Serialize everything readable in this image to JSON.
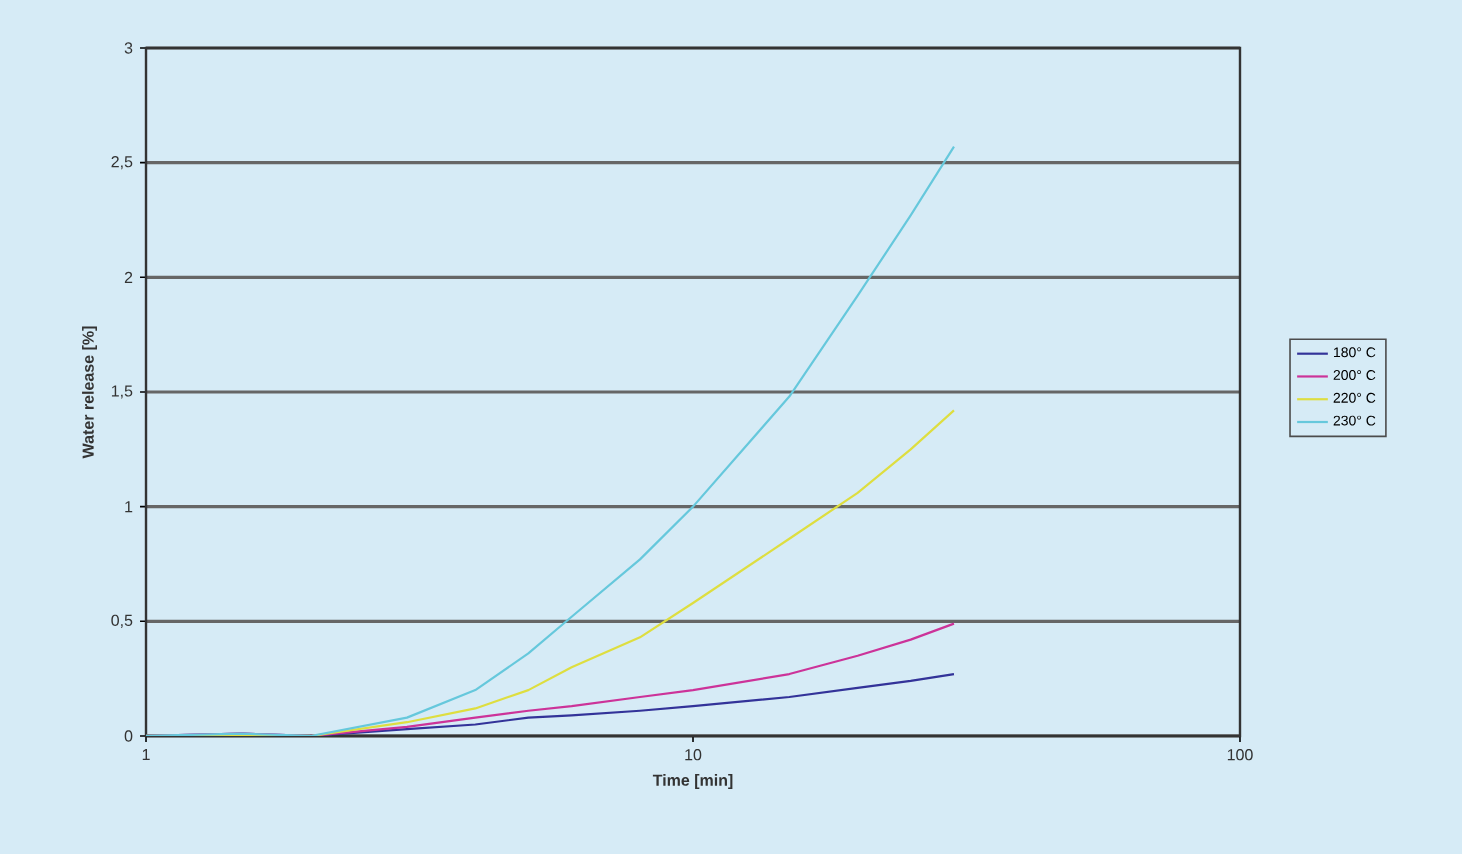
{
  "chart_data": {
    "type": "line",
    "xlabel": "Time [min]",
    "ylabel": "Water release [%]",
    "log": "x",
    "xlim": [
      1,
      100
    ],
    "xticks": [
      1,
      10,
      100
    ],
    "ylim": [
      0,
      3
    ],
    "yticks": [
      0,
      {
        "value": 0.5,
        "label": "0,5"
      },
      1,
      {
        "value": 1.5,
        "label": "1,5"
      },
      2,
      {
        "value": 2.5,
        "label": "2,5"
      },
      3
    ],
    "grid": "y",
    "legend": "right",
    "marker": "none",
    "line_style": "solid",
    "x": [
      1,
      1.5,
      2,
      3,
      4,
      5,
      6,
      8,
      10,
      15,
      20,
      25,
      30
    ],
    "series": [
      {
        "name": "180° C",
        "color": "#333399",
        "values": [
          0,
          0.01,
          0,
          0.03,
          0.05,
          0.08,
          0.09,
          0.11,
          0.13,
          0.17,
          0.21,
          0.24,
          0.27
        ]
      },
      {
        "name": "200° C",
        "color": "#cc3399",
        "values": [
          0,
          0.01,
          0,
          0.04,
          0.08,
          0.11,
          0.13,
          0.17,
          0.2,
          0.27,
          0.35,
          0.42,
          0.49
        ]
      },
      {
        "name": "220° C",
        "color": "#dede40",
        "values": [
          0,
          null,
          0,
          0.06,
          0.12,
          0.2,
          0.3,
          0.43,
          0.58,
          0.86,
          1.06,
          1.25,
          1.42
        ]
      },
      {
        "name": "230° C",
        "color": "#66c8dc",
        "values": [
          0,
          0.01,
          0,
          0.08,
          0.2,
          0.36,
          0.52,
          0.77,
          1.0,
          1.48,
          1.92,
          2.27,
          2.57
        ]
      }
    ]
  }
}
